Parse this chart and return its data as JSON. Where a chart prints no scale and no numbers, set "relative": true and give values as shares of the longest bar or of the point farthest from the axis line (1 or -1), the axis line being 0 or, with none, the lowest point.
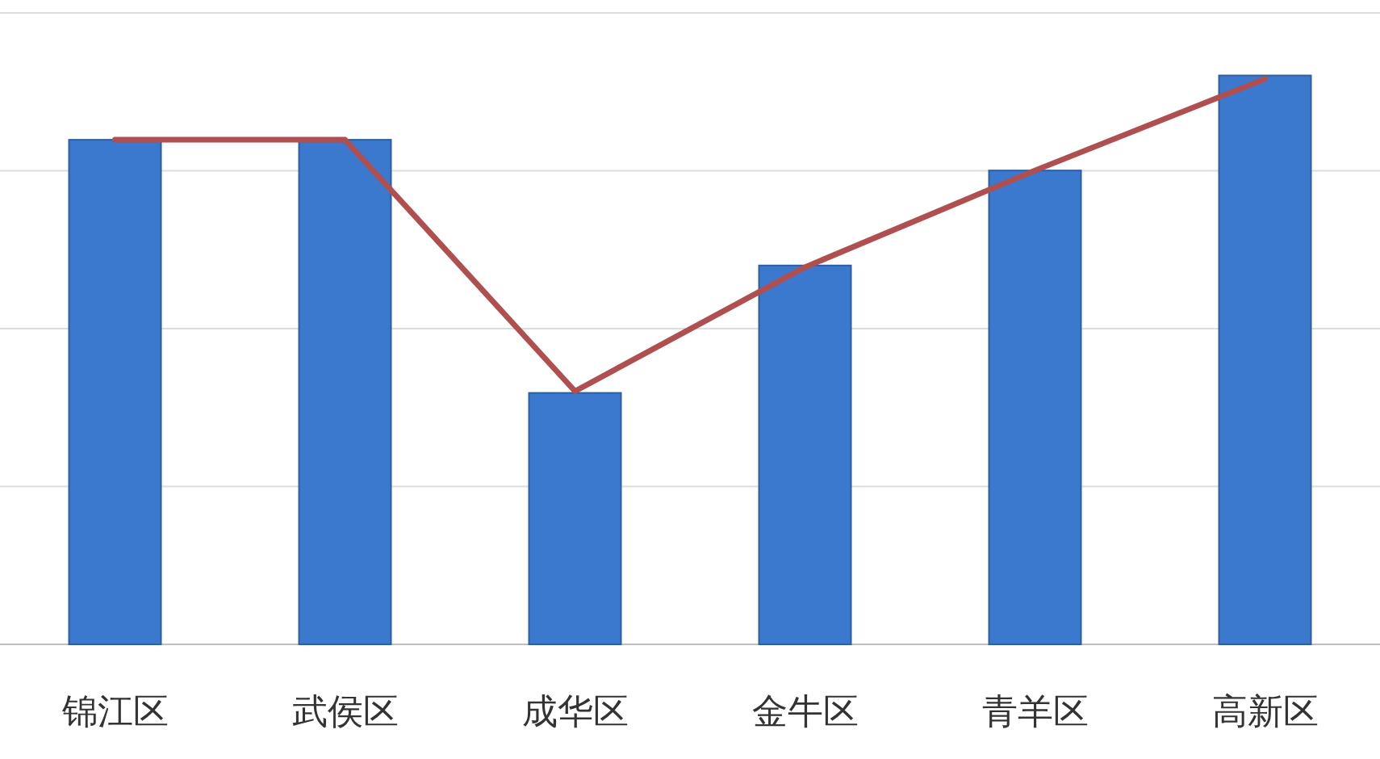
{
  "chart_data": {
    "type": "bar",
    "relative": true,
    "grid": "y",
    "categories": [
      "锦江区",
      "武侯区",
      "成华区",
      "金牛区",
      "青羊区",
      "高新区"
    ],
    "series": [
      {
        "color": "#3b79cf",
        "values": [
          0.887,
          0.887,
          0.442,
          0.666,
          0.833,
          1
        ]
      },
      {
        "type": "line",
        "color": "#b04f4f",
        "values": [
          0.887,
          0.887,
          0.445,
          0.663,
          0.833,
          0.994
        ]
      }
    ]
  }
}
